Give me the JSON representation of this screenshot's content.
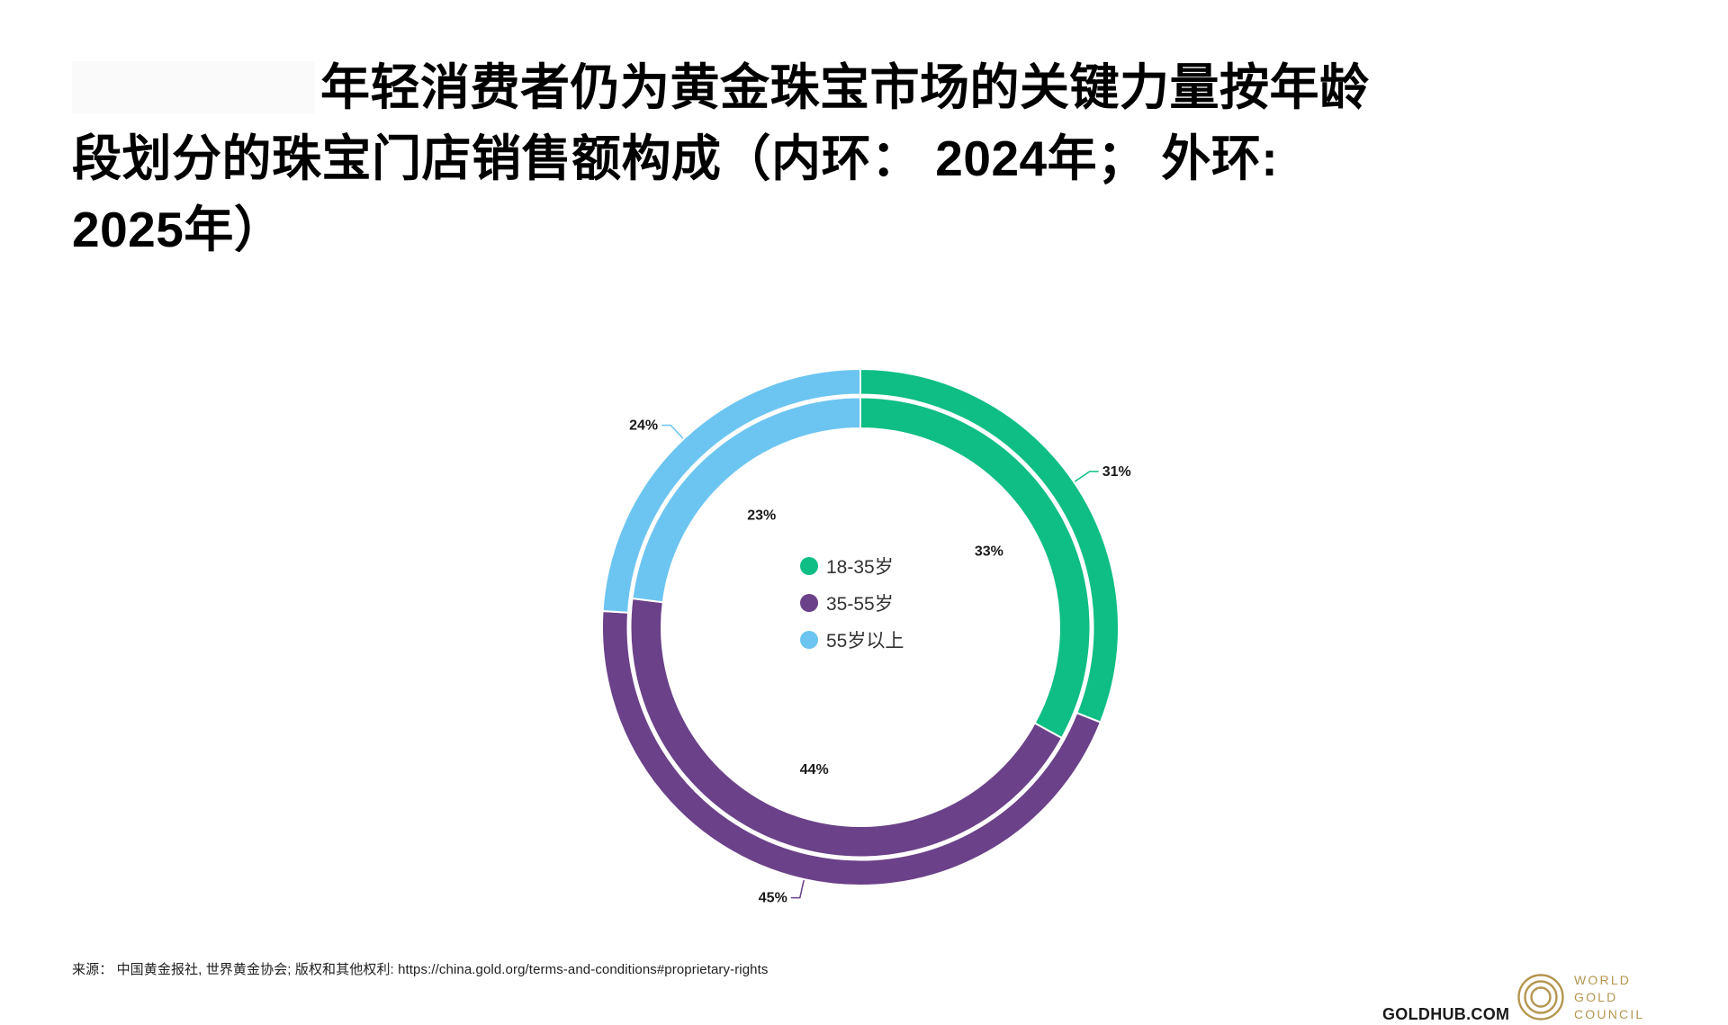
{
  "title": {
    "full": "年轻消费者仍为黄金珠宝市场的关键力量按年龄段划分的珠宝门店销售额构成（内环： 2024年； 外环: 2025年）",
    "lines": [
      "年轻消费者仍为黄金珠宝市场的关键力量按年龄",
      "段划分的珠宝门店销售额构成（内环： 2024年； 外环:",
      "2025年）"
    ]
  },
  "chart_data": {
    "type": "pie",
    "subtype": "double-ring-donut",
    "title": "按年龄段划分的珠宝门店销售额构成（内环：2024年；外环：2025年）",
    "categories": [
      "18-35岁",
      "35-55岁",
      "55岁以上"
    ],
    "colors": [
      "#0fbe84",
      "#6b4189",
      "#6cc5f1"
    ],
    "start_angle_deg": 0,
    "direction": "clockwise",
    "unit": "%",
    "label_format": "{value}%",
    "series": [
      {
        "name": "2024年",
        "ring": "inner",
        "values": [
          33,
          44,
          23
        ]
      },
      {
        "name": "2025年",
        "ring": "outer",
        "values": [
          31,
          45,
          24
        ]
      }
    ],
    "legend": {
      "position": "center",
      "items": [
        "18-35岁",
        "35-55岁",
        "55岁以上"
      ]
    }
  },
  "footer": {
    "source": "来源： 中国黄金报社, 世界黄金协会; 版权和其他权利: https://china.gold.org/terms-and-conditions#proprietary-rights",
    "goldhub": "GOLDHUB.COM",
    "logo": {
      "lines": [
        "WORLD",
        "GOLD",
        "COUNCIL"
      ],
      "color": "#b49650"
    }
  }
}
